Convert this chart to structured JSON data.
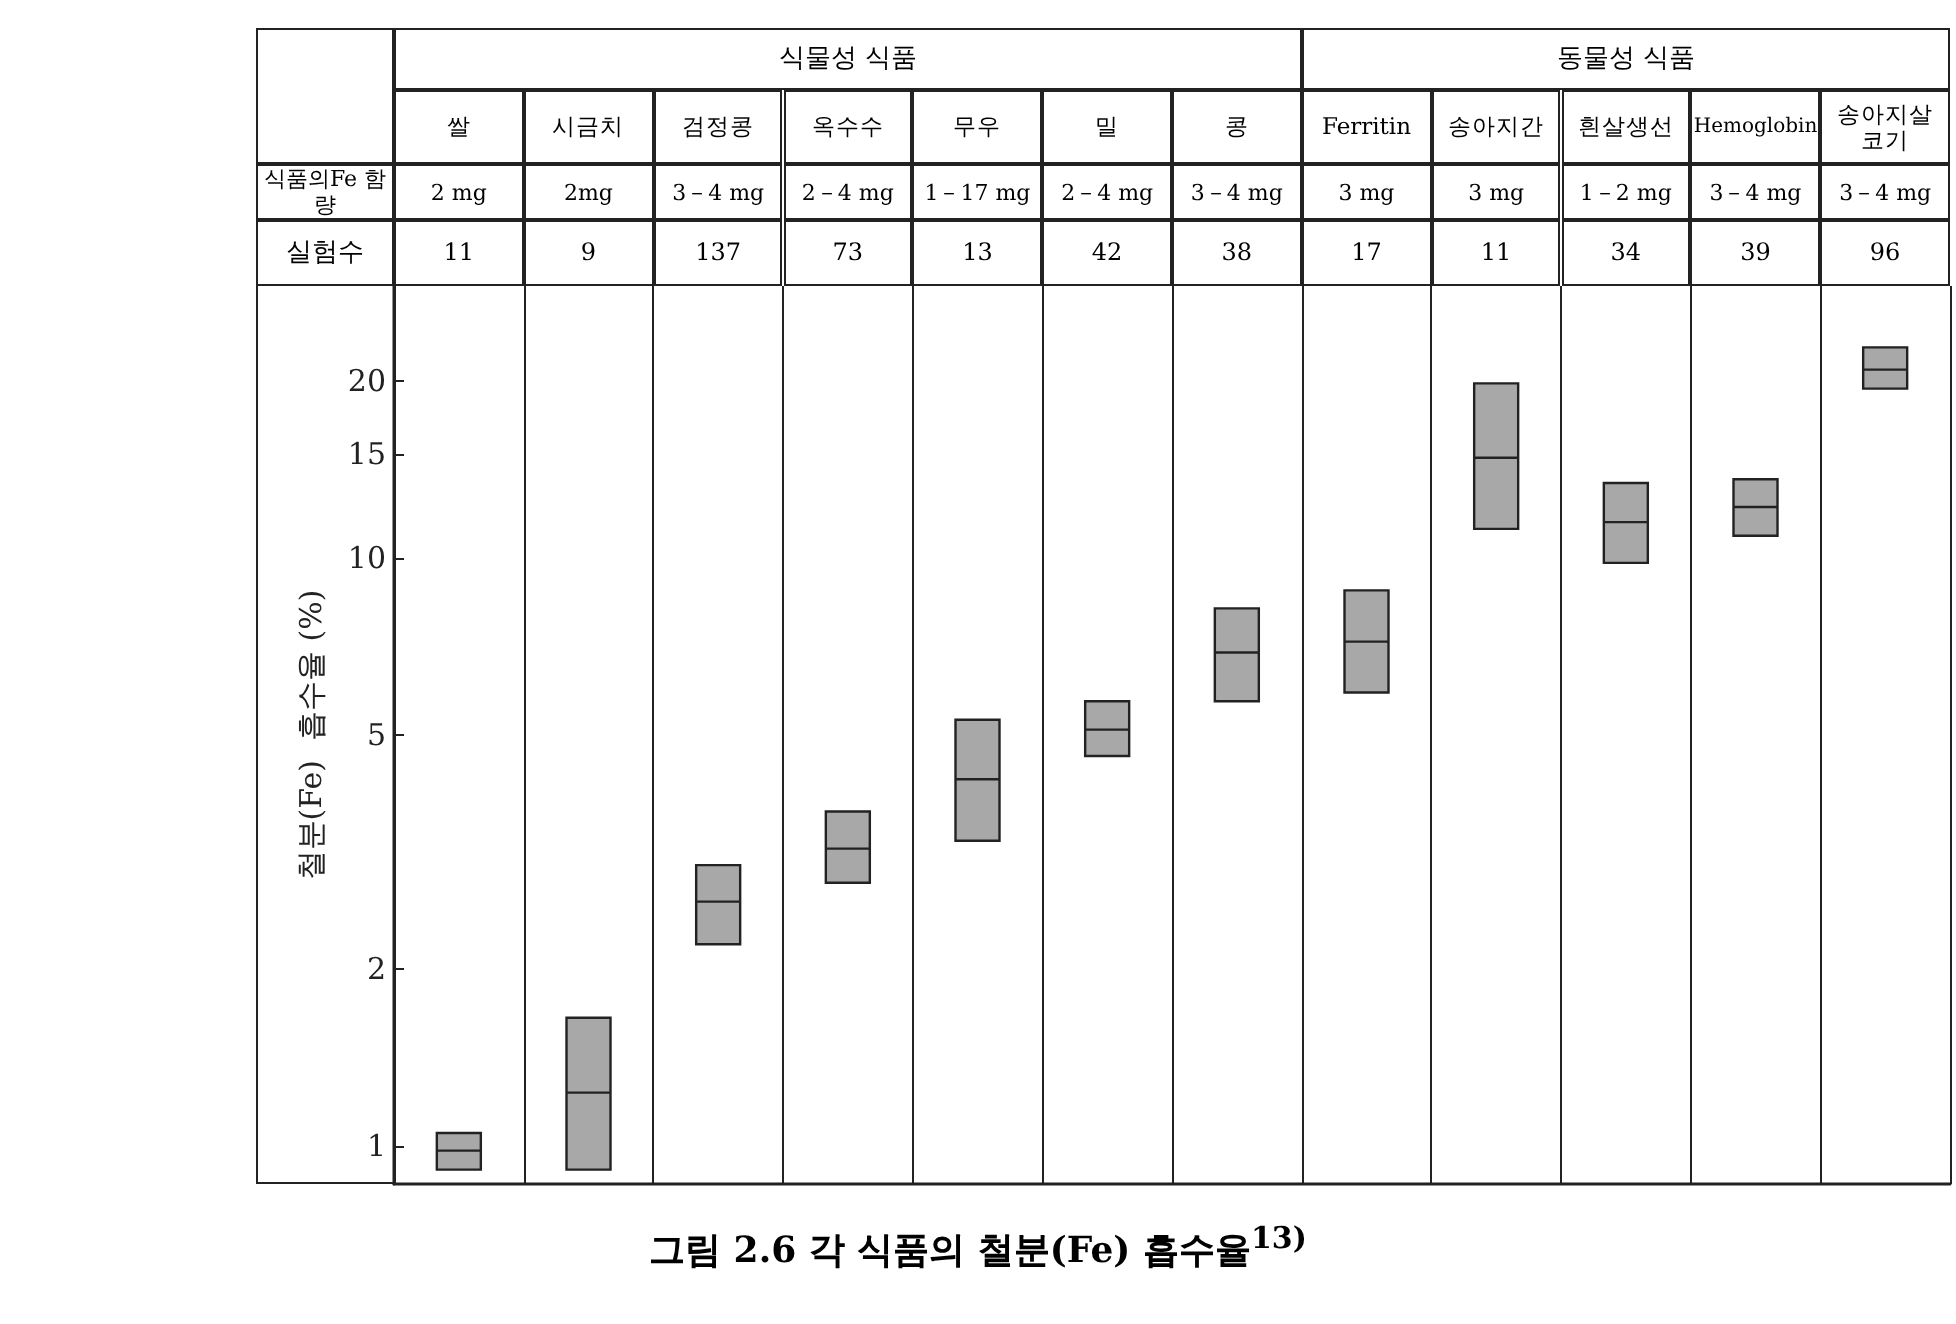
{
  "chart_data": {
    "type": "box",
    "title": "그림 2.6 각 식품의 철분(Fe) 흡수율$^{13)}$",
    "ylabel": "철분(Fe)  흡수율 (%)",
    "categories": [
      "쌀",
      "시금치",
      "검정콩",
      "옥수수",
      "무우",
      "밀",
      "콩",
      "Ferritin",
      "송아지간",
      "흰살생선",
      "Hemoglobin",
      "송아지살코기"
    ],
    "boxes": [
      {
        "low": 0.91,
        "q1": 0.91,
        "median": 0.98,
        "q3": 1.05,
        "high": 1.05
      },
      {
        "low": 0.91,
        "q1": 0.91,
        "median": 1.23,
        "q3": 1.65,
        "high": 1.65
      },
      {
        "low": 2.2,
        "q1": 2.2,
        "median": 2.6,
        "q3": 3.0,
        "high": 3.0
      },
      {
        "low": 2.8,
        "q1": 2.8,
        "median": 3.2,
        "q3": 3.7,
        "high": 3.7
      },
      {
        "low": 3.3,
        "q1": 3.3,
        "median": 4.2,
        "q3": 5.3,
        "high": 5.3
      },
      {
        "low": 4.6,
        "q1": 4.6,
        "median": 5.1,
        "q3": 5.7,
        "high": 5.7
      },
      {
        "low": 5.7,
        "q1": 5.7,
        "median": 6.9,
        "q3": 8.2,
        "high": 8.2
      },
      {
        "low": 5.9,
        "q1": 5.9,
        "median": 7.2,
        "q3": 8.8,
        "high": 8.8
      },
      {
        "low": 11.2,
        "q1": 11.2,
        "median": 14.8,
        "q3": 19.8,
        "high": 19.8
      },
      {
        "low": 9.8,
        "q1": 9.8,
        "median": 11.5,
        "q3": 13.4,
        "high": 13.4
      },
      {
        "low": 10.9,
        "q1": 10.9,
        "median": 12.2,
        "q3": 13.6,
        "high": 13.6
      },
      {
        "low": 19.4,
        "q1": 19.4,
        "median": 20.9,
        "q3": 22.8,
        "high": 22.8
      }
    ],
    "color": "#a8a8a8",
    "log": true,
    "ylim": [
      0.86,
      29
    ],
    "yticks": [
      1,
      2,
      5,
      10,
      15,
      20
    ],
    "grid": "x",
    "annotations": [
      "식물성 식품",
      "동물성 식품",
      "식품의Fe 함량",
      "실험수",
      "2 mg",
      "2mg",
      "3－4 mg",
      "2－4 mg",
      "1－17 mg",
      "2－4 mg",
      "3－4 mg",
      "3 mg",
      "3 mg",
      "1－2 mg",
      "3－4 mg",
      "3－4 mg",
      "11",
      "9",
      "137",
      "73",
      "13",
      "42",
      "38",
      "17",
      "11",
      "34",
      "39",
      "96"
    ]
  }
}
